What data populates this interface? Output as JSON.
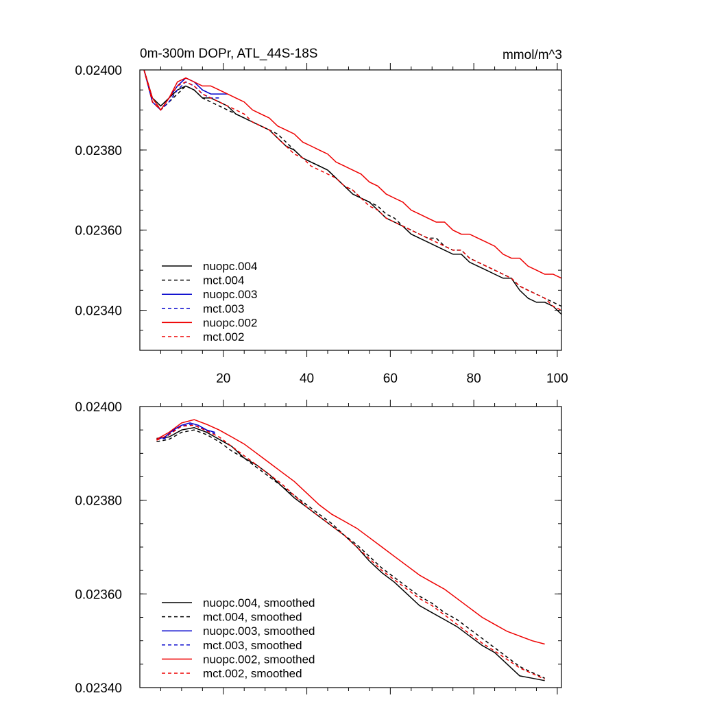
{
  "chart_data": [
    {
      "type": "line",
      "title": "0m-300m DOPr, ATL_44S-18S",
      "units": "mmol/m^3",
      "xlim": [
        0,
        101
      ],
      "ylim": [
        0.0233,
        0.024
      ],
      "xticks": [
        20,
        40,
        60,
        80,
        100
      ],
      "xtick_labels": [
        "20",
        "40",
        "60",
        "80",
        "100"
      ],
      "yticks": [
        0.0234,
        0.0236,
        0.0238,
        0.024
      ],
      "ytick_labels": [
        "0.02340",
        "0.02360",
        "0.02380",
        "0.02400"
      ],
      "legend_position": "bottom-left",
      "series": [
        {
          "name": "nuopc.004",
          "color": "#000000",
          "dashed": false,
          "x": [
            1,
            3,
            5,
            7,
            9,
            11,
            13,
            15,
            17,
            19,
            21,
            23,
            25,
            27,
            29,
            31,
            33,
            35,
            37,
            39,
            41,
            43,
            45,
            47,
            49,
            51,
            53,
            55,
            57,
            59,
            61,
            63,
            65,
            67,
            69,
            71,
            73,
            75,
            77,
            79,
            81,
            83,
            85,
            87,
            89,
            91,
            93,
            95,
            97,
            99,
            101
          ],
          "y": [
            0.024,
            0.02393,
            0.02391,
            0.02393,
            0.02395,
            0.02396,
            0.02395,
            0.02393,
            0.02393,
            0.02392,
            0.02391,
            0.02389,
            0.02388,
            0.02387,
            0.02386,
            0.02385,
            0.02383,
            0.02381,
            0.0238,
            0.02378,
            0.02377,
            0.02376,
            0.02375,
            0.02373,
            0.02371,
            0.02369,
            0.02368,
            0.02367,
            0.02365,
            0.02363,
            0.02362,
            0.02361,
            0.02359,
            0.02358,
            0.02357,
            0.02356,
            0.02355,
            0.02354,
            0.02354,
            0.02352,
            0.02351,
            0.0235,
            0.02349,
            0.02348,
            0.02348,
            0.02345,
            0.02343,
            0.02342,
            0.02342,
            0.02341,
            0.02339
          ]
        },
        {
          "name": "mct.004",
          "color": "#000000",
          "dashed": true,
          "x": [
            1,
            3,
            5,
            7,
            9,
            11,
            13,
            15,
            17,
            19,
            21,
            23,
            25,
            27,
            29,
            31,
            33,
            35,
            37,
            39,
            41,
            43,
            45,
            47,
            49,
            51,
            53,
            55,
            57,
            59,
            61,
            63,
            65,
            67,
            69,
            71,
            73,
            75,
            77,
            79,
            81,
            83,
            85,
            87,
            89,
            91,
            93,
            95,
            97,
            99,
            101
          ],
          "y": [
            0.024,
            0.02393,
            0.0239,
            0.02392,
            0.02394,
            0.02396,
            0.02395,
            0.02393,
            0.02392,
            0.02391,
            0.0239,
            0.02389,
            0.02388,
            0.02387,
            0.02386,
            0.02385,
            0.02384,
            0.02382,
            0.0238,
            0.02378,
            0.02377,
            0.02376,
            0.02375,
            0.02373,
            0.02371,
            0.0237,
            0.02368,
            0.02367,
            0.02366,
            0.02364,
            0.02363,
            0.02361,
            0.0236,
            0.02359,
            0.02358,
            0.02358,
            0.02356,
            0.02355,
            0.02355,
            0.02353,
            0.02352,
            0.02351,
            0.0235,
            0.02349,
            0.02348,
            0.02346,
            0.02345,
            0.02344,
            0.02343,
            0.02342,
            0.02341
          ]
        },
        {
          "name": "nuopc.003",
          "color": "#0000cc",
          "dashed": false,
          "x": [
            1,
            3,
            5,
            7,
            9,
            11,
            13,
            15,
            17,
            19,
            21
          ],
          "y": [
            0.024,
            0.02392,
            0.0239,
            0.02393,
            0.02396,
            0.02398,
            0.02397,
            0.02395,
            0.02394,
            0.02394,
            0.02394
          ]
        },
        {
          "name": "mct.003",
          "color": "#0000cc",
          "dashed": true,
          "x": [
            1,
            3,
            5,
            7,
            9,
            11,
            13,
            15,
            17,
            19
          ],
          "y": [
            0.024,
            0.02392,
            0.0239,
            0.02392,
            0.02395,
            0.02397,
            0.02396,
            0.02394,
            0.02393,
            0.02393
          ]
        },
        {
          "name": "nuopc.002",
          "color": "#ee0000",
          "dashed": false,
          "x": [
            1,
            3,
            5,
            7,
            9,
            11,
            13,
            15,
            17,
            19,
            21,
            23,
            25,
            27,
            29,
            31,
            33,
            35,
            37,
            39,
            41,
            43,
            45,
            47,
            49,
            51,
            53,
            55,
            57,
            59,
            61,
            63,
            65,
            67,
            69,
            71,
            73,
            75,
            77,
            79,
            81,
            83,
            85,
            87,
            89,
            91,
            93,
            95,
            97,
            99,
            101
          ],
          "y": [
            0.024,
            0.02393,
            0.0239,
            0.02393,
            0.02397,
            0.02398,
            0.02397,
            0.02396,
            0.02396,
            0.02395,
            0.02394,
            0.02393,
            0.02392,
            0.0239,
            0.02389,
            0.02388,
            0.02386,
            0.02385,
            0.02384,
            0.02382,
            0.02381,
            0.0238,
            0.02379,
            0.02377,
            0.02376,
            0.02375,
            0.02374,
            0.02372,
            0.02371,
            0.02369,
            0.02368,
            0.02367,
            0.02365,
            0.02364,
            0.02363,
            0.02362,
            0.02362,
            0.0236,
            0.02359,
            0.02359,
            0.02358,
            0.02357,
            0.02356,
            0.02354,
            0.02353,
            0.02353,
            0.02351,
            0.0235,
            0.02349,
            0.02349,
            0.02348
          ]
        },
        {
          "name": "mct.002",
          "color": "#ee0000",
          "dashed": true,
          "x": [
            1,
            3,
            5,
            7,
            9,
            11,
            13,
            15,
            17,
            19,
            21,
            23,
            25,
            27,
            29,
            31,
            33,
            35,
            37,
            39,
            41,
            43,
            45,
            47,
            49,
            51,
            53,
            55,
            57,
            59,
            61,
            63,
            65,
            67,
            69,
            71,
            73,
            75,
            77,
            79,
            81,
            83,
            85,
            87,
            89,
            91,
            93,
            95,
            97,
            99,
            101
          ],
          "y": [
            0.024,
            0.02392,
            0.0239,
            0.02393,
            0.02396,
            0.02397,
            0.02396,
            0.02394,
            0.02393,
            0.02392,
            0.02391,
            0.0239,
            0.02389,
            0.02387,
            0.02386,
            0.02385,
            0.02383,
            0.02381,
            0.02379,
            0.02378,
            0.02376,
            0.02375,
            0.02374,
            0.02373,
            0.02371,
            0.0237,
            0.02368,
            0.02366,
            0.02365,
            0.02363,
            0.02362,
            0.02361,
            0.0236,
            0.02359,
            0.02358,
            0.02357,
            0.02356,
            0.02355,
            0.02355,
            0.02353,
            0.02352,
            0.02351,
            0.0235,
            0.02349,
            0.02348,
            0.02346,
            0.02345,
            0.02344,
            0.02343,
            0.02341,
            0.0234
          ]
        }
      ]
    },
    {
      "type": "line",
      "title": "",
      "xlim": [
        0,
        101
      ],
      "ylim": [
        0.0234,
        0.024
      ],
      "yticks": [
        0.0234,
        0.0236,
        0.0238,
        0.024
      ],
      "ytick_labels": [
        "0.02340",
        "0.02360",
        "0.02380",
        "0.02400"
      ],
      "legend_position": "bottom-left",
      "series": [
        {
          "name": "nuopc.004, smoothed",
          "color": "#000000",
          "dashed": false,
          "x": [
            4,
            7,
            10,
            13,
            16,
            19,
            22,
            25,
            28,
            31,
            34,
            37,
            40,
            43,
            46,
            49,
            52,
            55,
            58,
            61,
            64,
            67,
            70,
            73,
            76,
            79,
            82,
            85,
            88,
            91,
            94,
            97
          ],
          "y": [
            0.023932,
            0.023935,
            0.02395,
            0.023955,
            0.023945,
            0.02393,
            0.023915,
            0.02389,
            0.023875,
            0.023855,
            0.02383,
            0.023805,
            0.023785,
            0.023765,
            0.023745,
            0.023725,
            0.0237,
            0.02367,
            0.023645,
            0.023625,
            0.0236,
            0.023575,
            0.02356,
            0.023545,
            0.02353,
            0.02351,
            0.02349,
            0.023475,
            0.02345,
            0.023425,
            0.02342,
            0.023415
          ]
        },
        {
          "name": "mct.004, smoothed",
          "color": "#000000",
          "dashed": true,
          "x": [
            4,
            7,
            10,
            13,
            16,
            19,
            22,
            25,
            28,
            31,
            34,
            37,
            40,
            43,
            46,
            49,
            52,
            55,
            58,
            61,
            64,
            67,
            70,
            73,
            76,
            79,
            82,
            85,
            88,
            91,
            94,
            97
          ],
          "y": [
            0.023925,
            0.02393,
            0.023945,
            0.02395,
            0.02394,
            0.023925,
            0.023905,
            0.02389,
            0.02387,
            0.02385,
            0.02383,
            0.02381,
            0.02379,
            0.02377,
            0.02375,
            0.023725,
            0.023705,
            0.02368,
            0.023655,
            0.023635,
            0.023615,
            0.023595,
            0.02358,
            0.02356,
            0.023545,
            0.023525,
            0.023505,
            0.023485,
            0.023465,
            0.023445,
            0.023432,
            0.02342
          ]
        },
        {
          "name": "nuopc.003, smoothed",
          "color": "#0000cc",
          "dashed": false,
          "x": [
            4,
            6,
            8,
            10,
            12,
            14,
            16,
            18
          ],
          "y": [
            0.02393,
            0.023935,
            0.02395,
            0.02396,
            0.023965,
            0.02396,
            0.02395,
            0.023945
          ]
        },
        {
          "name": "mct.003, smoothed",
          "color": "#0000cc",
          "dashed": true,
          "x": [
            4,
            6,
            8,
            10,
            12,
            14,
            16,
            18
          ],
          "y": [
            0.02393,
            0.023932,
            0.023948,
            0.023958,
            0.023962,
            0.023957,
            0.023948,
            0.023942
          ]
        },
        {
          "name": "nuopc.002, smoothed",
          "color": "#ee0000",
          "dashed": false,
          "x": [
            4,
            7,
            10,
            13,
            16,
            19,
            22,
            25,
            28,
            31,
            34,
            37,
            40,
            43,
            46,
            49,
            52,
            55,
            58,
            61,
            64,
            67,
            70,
            73,
            76,
            79,
            82,
            85,
            88,
            91,
            94,
            97
          ],
          "y": [
            0.02393,
            0.023945,
            0.023965,
            0.023972,
            0.023962,
            0.02395,
            0.023935,
            0.02392,
            0.0239,
            0.02388,
            0.02386,
            0.02384,
            0.023815,
            0.02379,
            0.02377,
            0.023755,
            0.02374,
            0.02372,
            0.0237,
            0.02368,
            0.02366,
            0.02364,
            0.023625,
            0.02361,
            0.02359,
            0.02357,
            0.02355,
            0.023535,
            0.02352,
            0.02351,
            0.0235,
            0.023493
          ]
        },
        {
          "name": "mct.002, smoothed",
          "color": "#ee0000",
          "dashed": true,
          "x": [
            4,
            7,
            10,
            13,
            16,
            19,
            22,
            25,
            28,
            31,
            34,
            37,
            40,
            43,
            46,
            49,
            52,
            55,
            58,
            61,
            64,
            67,
            70,
            73,
            76,
            79,
            82,
            85,
            88,
            91,
            94,
            97
          ],
          "y": [
            0.023928,
            0.02394,
            0.023958,
            0.02396,
            0.023948,
            0.023935,
            0.023915,
            0.023895,
            0.023875,
            0.023855,
            0.023835,
            0.02381,
            0.023785,
            0.023765,
            0.023745,
            0.023725,
            0.0237,
            0.023675,
            0.02365,
            0.02363,
            0.02361,
            0.02359,
            0.023575,
            0.023555,
            0.023535,
            0.023515,
            0.023495,
            0.023478,
            0.02346,
            0.023442,
            0.02343,
            0.023418
          ]
        }
      ]
    }
  ]
}
